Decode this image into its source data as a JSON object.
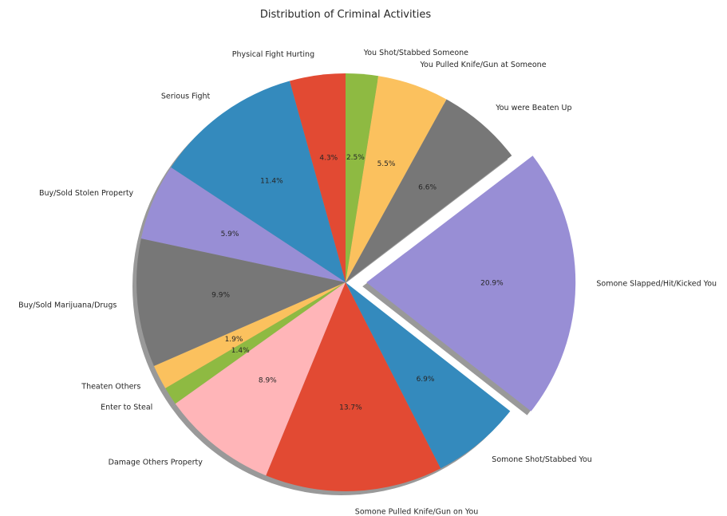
{
  "chart_data": {
    "type": "pie",
    "title": "Distribution of Criminal Activities",
    "start_angle_deg": 90,
    "direction": "counterclockwise",
    "shadow": true,
    "slices": [
      {
        "label": "Physical Fight Hurting",
        "value": 4.3,
        "pct_label": "4.3%",
        "color": "#e24a33",
        "explode": false
      },
      {
        "label": "Serious Fight",
        "value": 11.4,
        "pct_label": "11.4%",
        "color": "#348abd",
        "explode": false
      },
      {
        "label": "Buy/Sold Stolen Property",
        "value": 5.9,
        "pct_label": "5.9%",
        "color": "#988ed5",
        "explode": false
      },
      {
        "label": "Buy/Sold Marijuana/Drugs",
        "value": 9.9,
        "pct_label": "9.9%",
        "color": "#777777",
        "explode": false
      },
      {
        "label": "Theaten Others",
        "value": 1.9,
        "pct_label": "1.9%",
        "color": "#fbc15e",
        "explode": false
      },
      {
        "label": "Enter to Steal",
        "value": 1.4,
        "pct_label": "1.4%",
        "color": "#8eba42",
        "explode": false
      },
      {
        "label": "Damage Others Property",
        "value": 8.9,
        "pct_label": "8.9%",
        "color": "#ffb5b8",
        "explode": false
      },
      {
        "label": "Somone Pulled Knife/Gun on You",
        "value": 13.7,
        "pct_label": "13.7%",
        "color": "#e24a33",
        "explode": false
      },
      {
        "label": "Somone Shot/Stabbed You",
        "value": 6.9,
        "pct_label": "6.9%",
        "color": "#348abd",
        "explode": false
      },
      {
        "label": "Somone Slapped/Hit/Kicked You",
        "value": 20.9,
        "pct_label": "20.9%",
        "color": "#988ed5",
        "explode": true
      },
      {
        "label": "You were Beaten Up",
        "value": 6.6,
        "pct_label": "6.6%",
        "color": "#777777",
        "explode": false
      },
      {
        "label": "You Pulled Knife/Gun at Someone",
        "value": 5.5,
        "pct_label": "5.5%",
        "color": "#fbc15e",
        "explode": false
      },
      {
        "label": "You Shot/Stabbed Someone",
        "value": 2.5,
        "pct_label": "2.5%",
        "color": "#8eba42",
        "explode": false
      }
    ]
  }
}
